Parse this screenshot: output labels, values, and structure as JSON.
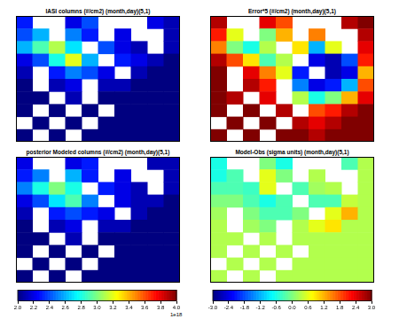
{
  "chart_data": [
    {
      "type": "heatmap",
      "title": "IASI columns (#/cm2) (month,day)(5,1)",
      "color_range": [
        2,
        4
      ],
      "tick_labels": false,
      "cells": [
        [
          2.3,
          null,
          null,
          2.2,
          2.4,
          null,
          null,
          null,
          2.2,
          2.1
        ],
        [
          2.4,
          2.6,
          null,
          2.5,
          2.3,
          null,
          2.2,
          null,
          null,
          2.1
        ],
        [
          2.6,
          2.9,
          3.1,
          2.7,
          null,
          2.4,
          2.2,
          2.1,
          null,
          2.1
        ],
        [
          2.2,
          2.4,
          2.8,
          3.2,
          2.6,
          null,
          2.3,
          2.2,
          2.1,
          2.0
        ],
        [
          2.1,
          null,
          2.3,
          2.5,
          2.4,
          2.2,
          null,
          2.1,
          2.0,
          2.0
        ],
        [
          2.0,
          null,
          2.1,
          2.2,
          null,
          2.1,
          2.1,
          2.0,
          2.0,
          2.0
        ],
        [
          2.0,
          2.0,
          null,
          2.1,
          null,
          2.0,
          2.0,
          2.0,
          2.0,
          2.0
        ],
        [
          2.0,
          null,
          2.0,
          null,
          2.0,
          null,
          2.0,
          2.0,
          2.0,
          2.0
        ],
        [
          null,
          2.0,
          null,
          2.0,
          null,
          2.0,
          2.0,
          2.0,
          2.0,
          2.0
        ],
        [
          2.0,
          null,
          2.0,
          null,
          2.0,
          2.0,
          2.0,
          2.0,
          2.0,
          2.0
        ]
      ]
    },
    {
      "type": "heatmap",
      "title": "Error*5 (#/cm2) (month,day)(5,1)",
      "color_range": [
        2,
        4
      ],
      "tick_labels": false,
      "cells": [
        [
          3.9,
          null,
          null,
          3.8,
          3.6,
          null,
          null,
          null,
          3.9,
          4.0
        ],
        [
          3.7,
          3.2,
          null,
          3.0,
          3.4,
          null,
          3.5,
          null,
          null,
          3.9
        ],
        [
          3.5,
          3.0,
          2.8,
          3.1,
          null,
          3.3,
          2.6,
          3.2,
          null,
          3.8
        ],
        [
          3.9,
          3.6,
          3.3,
          2.9,
          3.1,
          null,
          2.2,
          2.1,
          2.4,
          3.7
        ],
        [
          4.0,
          null,
          3.8,
          3.5,
          3.2,
          2.3,
          null,
          2.1,
          2.2,
          3.4
        ],
        [
          4.0,
          null,
          3.9,
          3.7,
          null,
          2.5,
          2.2,
          2.3,
          2.6,
          3.6
        ],
        [
          4.0,
          3.9,
          null,
          3.8,
          null,
          3.1,
          2.8,
          3.0,
          3.4,
          3.8
        ],
        [
          4.0,
          null,
          4.0,
          null,
          3.9,
          null,
          3.6,
          3.7,
          3.9,
          4.0
        ],
        [
          null,
          4.0,
          null,
          4.0,
          null,
          3.9,
          3.8,
          3.9,
          4.0,
          4.0
        ],
        [
          4.0,
          null,
          4.0,
          null,
          4.0,
          4.0,
          3.9,
          4.0,
          4.0,
          4.0
        ]
      ]
    },
    {
      "type": "heatmap",
      "title": "posterior Modeled columns (#/cm2) (month,day)(5,1)",
      "color_range": [
        2,
        4
      ],
      "tick_labels": false,
      "cells": [
        [
          2.2,
          null,
          null,
          2.2,
          2.3,
          null,
          null,
          null,
          2.1,
          2.1
        ],
        [
          2.3,
          2.5,
          null,
          2.6,
          2.3,
          null,
          2.2,
          null,
          null,
          2.1
        ],
        [
          2.5,
          2.8,
          3.0,
          2.8,
          null,
          2.3,
          2.2,
          2.1,
          null,
          2.1
        ],
        [
          2.2,
          2.4,
          2.7,
          2.9,
          2.5,
          null,
          2.2,
          2.1,
          2.1,
          2.0
        ],
        [
          2.1,
          null,
          2.3,
          2.4,
          2.3,
          2.2,
          null,
          2.1,
          2.0,
          2.0
        ],
        [
          2.0,
          null,
          2.1,
          2.2,
          null,
          2.1,
          2.1,
          2.0,
          2.0,
          2.0
        ],
        [
          2.0,
          2.0,
          null,
          2.1,
          null,
          2.0,
          2.0,
          2.0,
          2.0,
          2.0
        ],
        [
          2.0,
          null,
          2.0,
          null,
          2.0,
          null,
          2.0,
          2.0,
          2.0,
          2.0
        ],
        [
          null,
          2.0,
          null,
          2.0,
          null,
          2.0,
          2.0,
          2.0,
          2.0,
          2.0
        ],
        [
          2.0,
          null,
          2.0,
          null,
          2.0,
          2.0,
          2.0,
          2.0,
          2.0,
          2.0
        ]
      ]
    },
    {
      "type": "heatmap",
      "title": "Model-Obs (sigma units) (month,day)(5,1)",
      "color_range": [
        -3,
        3
      ],
      "tick_labels": false,
      "cells": [
        [
          -0.6,
          null,
          null,
          0.0,
          -0.6,
          null,
          null,
          null,
          -0.3,
          0.3
        ],
        [
          -0.6,
          -0.3,
          null,
          0.6,
          0.0,
          null,
          0.3,
          null,
          null,
          0.3
        ],
        [
          -0.3,
          -0.3,
          -0.4,
          0.6,
          null,
          -0.3,
          0.2,
          0.3,
          null,
          0.3
        ],
        [
          0.0,
          0.0,
          -0.3,
          -0.6,
          -0.3,
          null,
          -0.3,
          -0.3,
          0.4,
          0.3
        ],
        [
          0.2,
          null,
          0.0,
          -0.3,
          -0.3,
          0.0,
          null,
          0.6,
          1.2,
          0.3
        ],
        [
          0.3,
          null,
          0.2,
          0.0,
          null,
          0.3,
          0.6,
          0.9,
          0.3,
          0.3
        ],
        [
          0.3,
          0.3,
          null,
          0.3,
          null,
          0.3,
          0.3,
          0.3,
          0.3,
          0.3
        ],
        [
          0.3,
          null,
          0.3,
          null,
          0.3,
          null,
          0.3,
          0.3,
          0.3,
          0.3
        ],
        [
          null,
          0.3,
          null,
          0.3,
          null,
          0.3,
          0.3,
          0.3,
          0.3,
          0.3
        ],
        [
          0.3,
          null,
          0.3,
          null,
          0.3,
          0.3,
          0.3,
          0.3,
          0.3,
          0.3
        ]
      ]
    }
  ],
  "colorbars": [
    {
      "range": [
        2,
        4
      ],
      "offset_label": "1e18",
      "ticks": [
        {
          "value": 2,
          "label": "2.0"
        },
        2.2,
        2.4,
        2.6,
        2.8,
        {
          "value": 3,
          "label": "3.0"
        },
        3.2,
        3.4,
        3.6,
        3.8,
        {
          "value": 4,
          "label": "4.0"
        }
      ]
    },
    {
      "range": [
        -3,
        3
      ],
      "ticks": [
        {
          "value": -3,
          "label": "-3.0"
        },
        -2.4,
        -1.8,
        -1.2,
        -0.6,
        {
          "value": 0,
          "label": "0.0"
        },
        0.6,
        1.2,
        1.8,
        2.4,
        {
          "value": 3,
          "label": "3.0"
        }
      ]
    }
  ]
}
